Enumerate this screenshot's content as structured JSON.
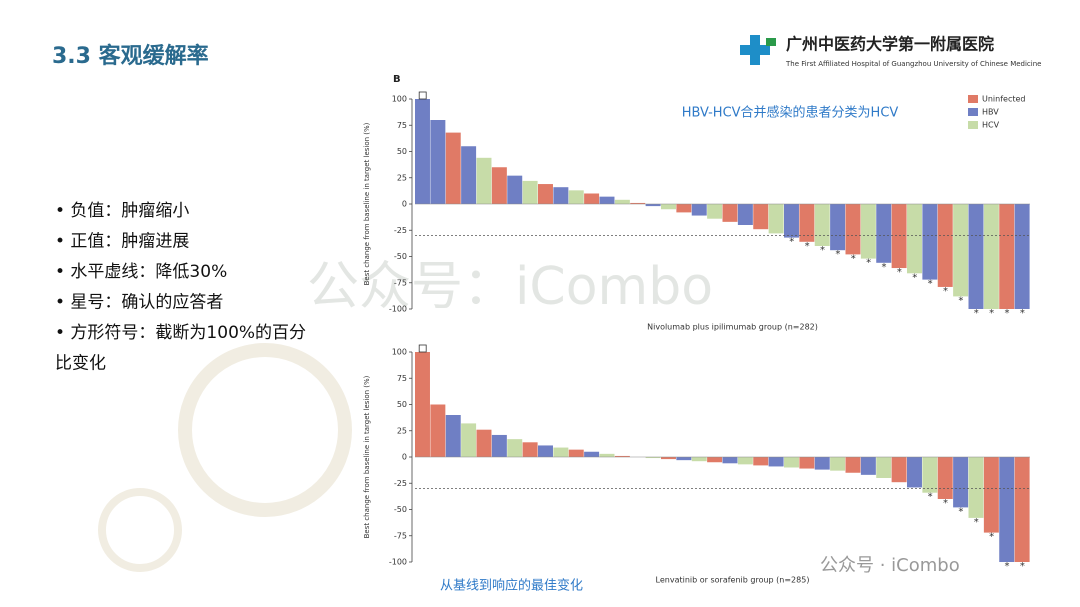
{
  "slide": {
    "title": "3.3 客观缓解率",
    "bullets": [
      "• 负值：肿瘤缩小",
      "• 正值：肿瘤进展",
      "• 水平虚线：降低30%",
      "• 星号：确认的应答者",
      "• 方形符号：截断为100%的百分",
      "比变化"
    ],
    "logo_cn": "广州中医药大学第一附属医院",
    "logo_en": "The First Affiliated Hospital of Guangzhou University of Chinese Medicine",
    "watermark": "公众号：iCombo",
    "watermark_small": "公众号 · iCombo",
    "caption": "从基线到响应的最佳变化"
  },
  "chart_data": [
    {
      "type": "waterfall",
      "panel_label": "B",
      "annotation": "HBV-HCV合并感染的患者分类为HCV",
      "x_label": "Nivolumab plus ipilimumab group (n=282)",
      "y_label": "Best change from baseline in target lesion (%)",
      "ylim": [
        -100,
        100
      ],
      "yticks": [
        100,
        75,
        50,
        25,
        0,
        -25,
        -50,
        -75,
        -100
      ],
      "threshold": -30,
      "legend": "top-right",
      "series": [
        {
          "name": "Uninfected",
          "color": "#e07a66",
          "values": [
            null,
            null,
            68,
            null,
            null,
            35,
            null,
            null,
            19,
            null,
            null,
            10,
            null,
            null,
            1,
            null,
            null,
            -8,
            null,
            null,
            -17,
            null,
            -24,
            null,
            null,
            -36,
            null,
            null,
            -48,
            null,
            null,
            -61,
            null,
            null,
            -79,
            null,
            null,
            null,
            -100,
            null
          ]
        },
        {
          "name": "HBV",
          "color": "#6f7fc4",
          "values": [
            100,
            80,
            null,
            55,
            null,
            null,
            27,
            null,
            null,
            16,
            null,
            null,
            7,
            null,
            null,
            -2,
            null,
            null,
            -11,
            null,
            null,
            -20,
            null,
            null,
            -32,
            null,
            null,
            -44,
            null,
            null,
            -56,
            null,
            null,
            -72,
            null,
            null,
            -100,
            null,
            null,
            -100
          ]
        },
        {
          "name": "HCV",
          "color": "#c7dca8",
          "values": [
            null,
            null,
            null,
            null,
            44,
            null,
            null,
            22,
            null,
            null,
            13,
            null,
            null,
            4,
            null,
            null,
            -5,
            null,
            null,
            -14,
            null,
            null,
            null,
            -28,
            null,
            null,
            -40,
            null,
            null,
            -52,
            null,
            null,
            -66,
            null,
            null,
            -88,
            null,
            -100,
            null,
            null
          ]
        }
      ]
    },
    {
      "type": "waterfall",
      "x_label": "Lenvatinib or sorafenib group (n=285)",
      "y_label": "Best change from baseline in target lesion (%)",
      "ylim": [
        -100,
        100
      ],
      "yticks": [
        100,
        75,
        50,
        25,
        0,
        -25,
        -50,
        -75,
        -100
      ],
      "threshold": -30,
      "series": [
        {
          "color": "#e07a66",
          "values": [
            100,
            50,
            null,
            null,
            26,
            null,
            null,
            14,
            null,
            null,
            7,
            null,
            null,
            1,
            null,
            null,
            -2,
            null,
            null,
            -5,
            null,
            null,
            -8,
            null,
            null,
            -11,
            null,
            null,
            -15,
            null,
            null,
            -24,
            null,
            null,
            -40,
            null,
            null,
            -72,
            null,
            -100
          ]
        },
        {
          "color": "#6f7fc4",
          "values": [
            null,
            null,
            40,
            null,
            null,
            21,
            null,
            null,
            11,
            null,
            null,
            5,
            null,
            null,
            0,
            null,
            null,
            -3,
            null,
            null,
            -6,
            null,
            null,
            -9,
            null,
            null,
            -12,
            null,
            null,
            -17,
            null,
            null,
            -29,
            null,
            null,
            -48,
            null,
            null,
            -100,
            null
          ]
        },
        {
          "color": "#c7dca8",
          "values": [
            null,
            null,
            null,
            32,
            null,
            null,
            17,
            null,
            null,
            9,
            null,
            null,
            3,
            null,
            null,
            -1,
            null,
            null,
            -4,
            null,
            null,
            -7,
            null,
            null,
            -10,
            null,
            null,
            -13,
            null,
            null,
            -20,
            null,
            null,
            -34,
            null,
            null,
            -58,
            null,
            null,
            null
          ]
        }
      ]
    }
  ]
}
